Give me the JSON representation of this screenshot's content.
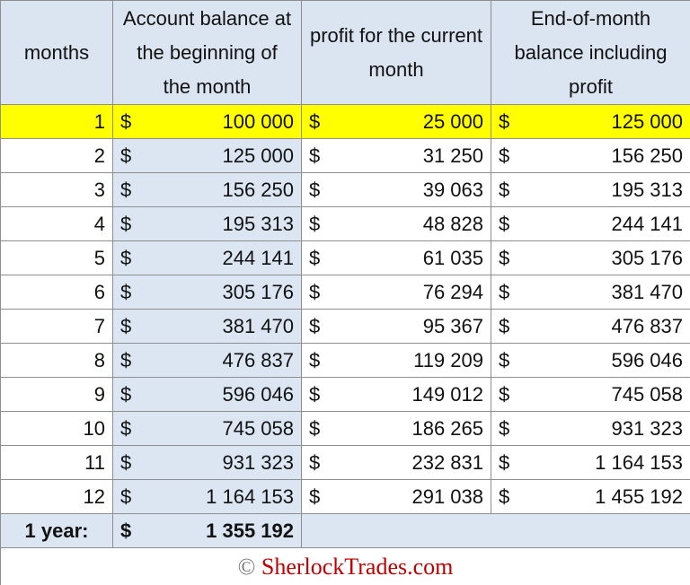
{
  "table": {
    "header": [
      "months",
      "Account balance at the beginning of the month",
      "profit for the current month",
      "End-of-month balance including profit"
    ],
    "currency": "$",
    "rows": [
      [
        "1",
        "100 000",
        "25 000",
        "125 000"
      ],
      [
        "2",
        "125 000",
        "31 250",
        "156 250"
      ],
      [
        "3",
        "156 250",
        "39 063",
        "195 313"
      ],
      [
        "4",
        "195 313",
        "48 828",
        "244 141"
      ],
      [
        "5",
        "244 141",
        "61 035",
        "305 176"
      ],
      [
        "6",
        "305 176",
        "76 294",
        "381 470"
      ],
      [
        "7",
        "381 470",
        "95 367",
        "476 837"
      ],
      [
        "8",
        "476 837",
        "119 209",
        "596 046"
      ],
      [
        "9",
        "596 046",
        "149 012",
        "745 058"
      ],
      [
        "10",
        "745 058",
        "186 265",
        "931 323"
      ],
      [
        "11",
        "931 323",
        "232 831",
        "1 164 153"
      ],
      [
        "12",
        "1 164 153",
        "291 038",
        "1 455 192"
      ]
    ],
    "total": {
      "label": "1 year:",
      "value": "1 355 192"
    }
  },
  "footer": {
    "copyright": "©",
    "brand": "SherlockTrades.com"
  }
}
